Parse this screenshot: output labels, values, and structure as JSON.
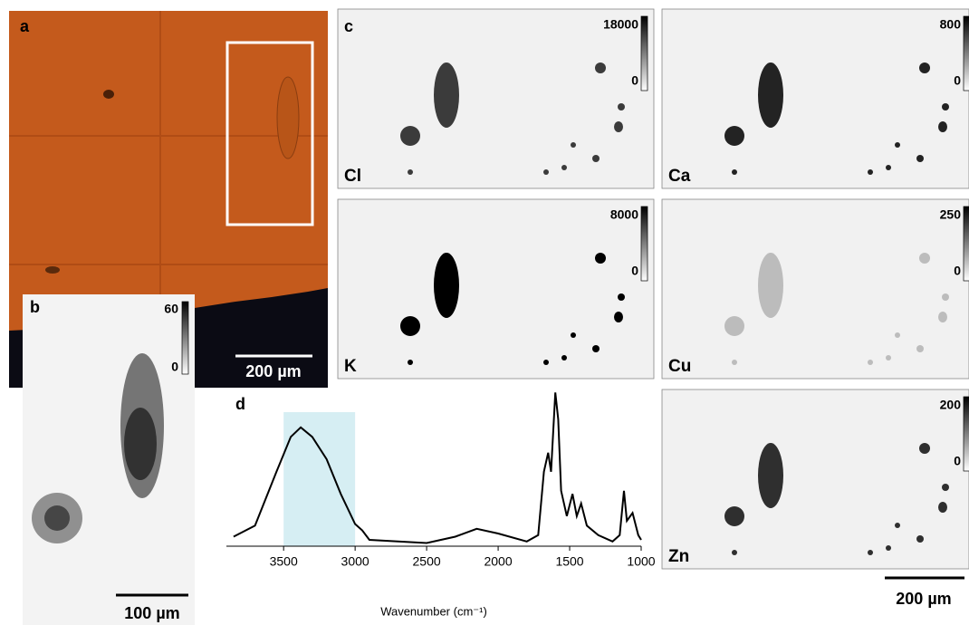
{
  "panels": {
    "a": {
      "label": "a",
      "scale_bar": "200 µm"
    },
    "b": {
      "label": "b",
      "colorbar_max": 60,
      "colorbar_min": 0,
      "scale_bar": "100 µm"
    },
    "c": {
      "label": "c"
    },
    "maps": [
      {
        "element": "Cl",
        "colorbar_max": 18000,
        "colorbar_min": 0
      },
      {
        "element": "Ca",
        "colorbar_max": 800,
        "colorbar_min": 0
      },
      {
        "element": "K",
        "colorbar_max": 8000,
        "colorbar_min": 0
      },
      {
        "element": "Cu",
        "colorbar_max": 250,
        "colorbar_min": 0
      },
      {
        "element": "Zn",
        "colorbar_max": 200,
        "colorbar_min": 0
      }
    ],
    "maps_scale_bar": "200 µm",
    "d": {
      "label": "d"
    }
  },
  "chart_data": {
    "type": "line",
    "x_label": "Wavenumber (cm⁻¹)",
    "xlim": [
      3900,
      1000
    ],
    "xticks": [
      3500,
      3000,
      2500,
      2000,
      1500,
      1000
    ],
    "ylim": [
      0,
      1
    ],
    "highlight": [
      3500,
      3000
    ],
    "highlight_color": "#d6eef3",
    "series": [
      {
        "color": "#000000",
        "x": [
          3850,
          3700,
          3550,
          3450,
          3380,
          3300,
          3200,
          3100,
          3000,
          2950,
          2900,
          2500,
          2300,
          2150,
          2000,
          1800,
          1720,
          1680,
          1650,
          1630,
          1600,
          1580,
          1560,
          1520,
          1480,
          1450,
          1420,
          1380,
          1300,
          1200,
          1150,
          1120,
          1100,
          1060,
          1020,
          1000
        ],
        "values": [
          0.06,
          0.13,
          0.47,
          0.69,
          0.75,
          0.69,
          0.55,
          0.33,
          0.14,
          0.1,
          0.04,
          0.02,
          0.06,
          0.11,
          0.08,
          0.03,
          0.07,
          0.47,
          0.59,
          0.47,
          0.97,
          0.8,
          0.35,
          0.19,
          0.33,
          0.19,
          0.27,
          0.13,
          0.07,
          0.03,
          0.07,
          0.35,
          0.16,
          0.21,
          0.07,
          0.04
        ]
      }
    ]
  }
}
